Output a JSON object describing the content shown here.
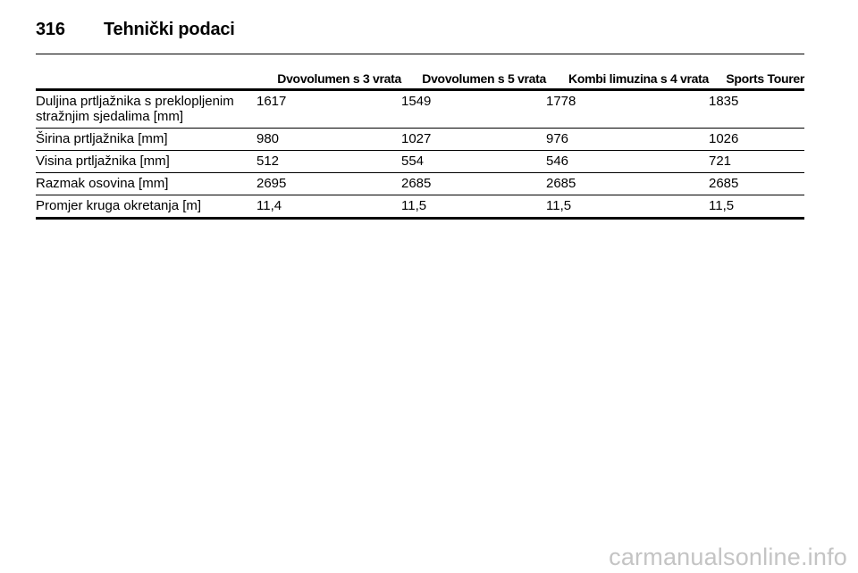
{
  "header": {
    "page_number": "316",
    "section_title": "Tehnički podaci"
  },
  "table": {
    "columns": [
      "",
      "Dvovolumen s 3 vrata",
      "Dvovolumen s 5 vrata",
      "Kombi limuzina s 4 vrata",
      "Sports Tourer"
    ],
    "rows": [
      {
        "label_line1": "Duljina prtljažnika s preklopljenim",
        "label_line2": "stražnjim sjedalima [mm]",
        "values": [
          "1617",
          "1549",
          "1778",
          "1835"
        ]
      },
      {
        "label_line1": "Širina prtljažnika [mm]",
        "label_line2": "",
        "values": [
          "980",
          "1027",
          "976",
          "1026"
        ]
      },
      {
        "label_line1": "Visina prtljažnika [mm]",
        "label_line2": "",
        "values": [
          "512",
          "554",
          "546",
          "721"
        ]
      },
      {
        "label_line1": "Razmak osovina [mm]",
        "label_line2": "",
        "values": [
          "2695",
          "2685",
          "2685",
          "2685"
        ]
      },
      {
        "label_line1": "Promjer kruga okretanja [m]",
        "label_line2": "",
        "values": [
          "11,4",
          "11,5",
          "11,5",
          "11,5"
        ]
      }
    ]
  },
  "watermark": "carmanualsonline.info"
}
